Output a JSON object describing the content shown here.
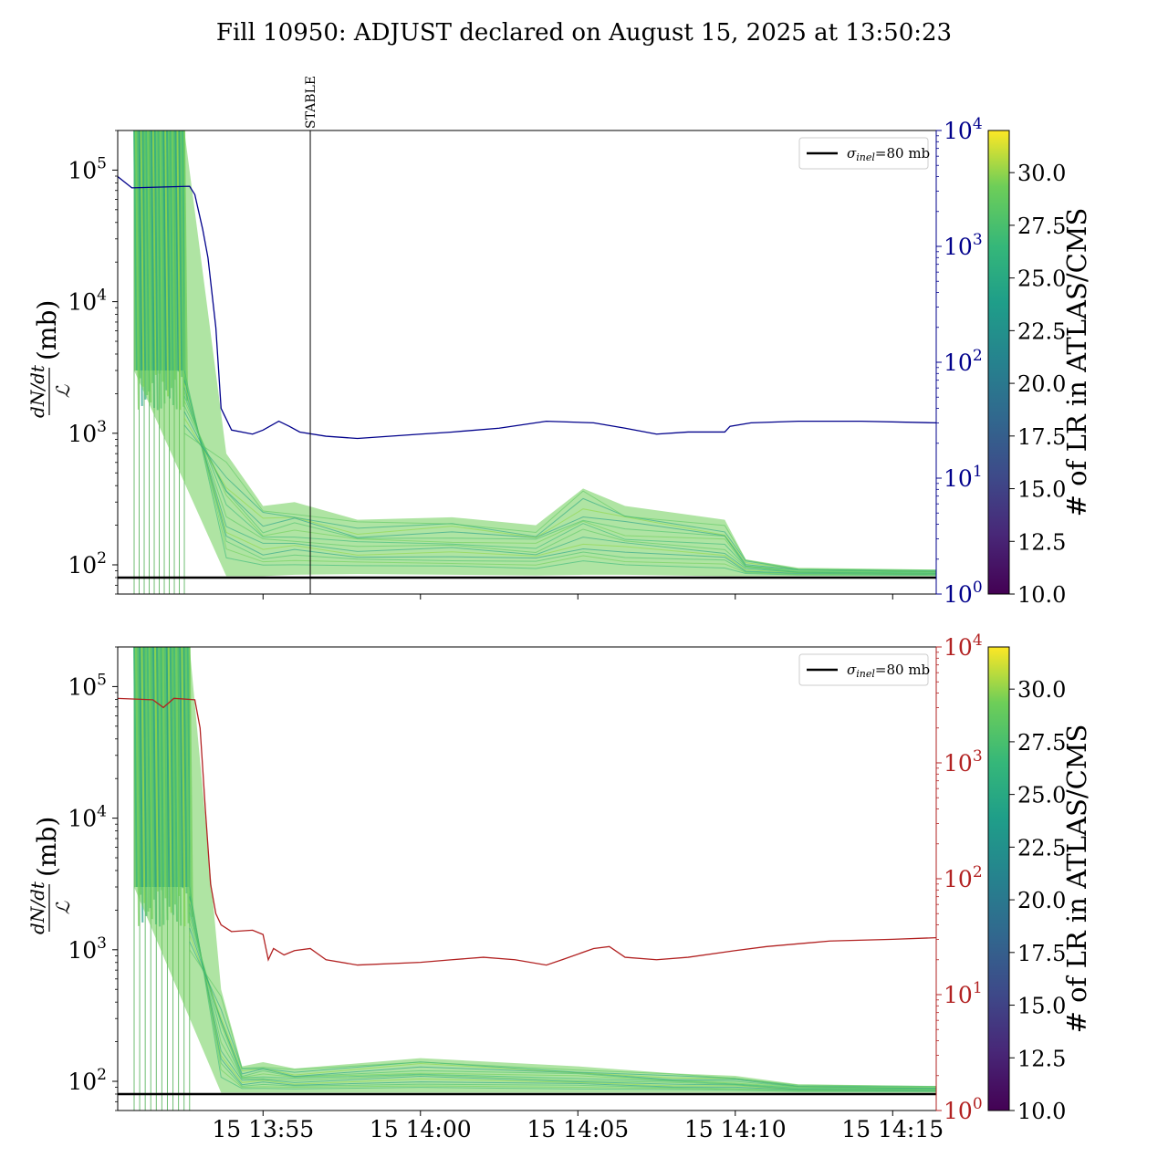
{
  "title": "Fill 10950: ADJUST declared on August 15, 2025 at 13:50:23",
  "colors": {
    "lumi_line": "#00008b",
    "rate_line": "#b22222",
    "reference_line": "#000000",
    "annotation_line": "#000000"
  },
  "chart_data": [
    {
      "type": "line",
      "panel": "top",
      "ylabel": {
        "numerator": "dN/dt",
        "denominator": "ℒ",
        "unit": "(mb)"
      },
      "yscale": "log",
      "ylim": [
        60,
        200000
      ],
      "y_ticks": [
        {
          "value": 100,
          "base": "10",
          "exp": "2"
        },
        {
          "value": 1000,
          "base": "10",
          "exp": "3"
        },
        {
          "value": 10000,
          "base": "10",
          "exp": "4"
        },
        {
          "value": 100000,
          "base": "10",
          "exp": "5"
        }
      ],
      "xlim": [
        "13:50:23",
        "14:16:23"
      ],
      "x_ticks": [],
      "y2scale": "log",
      "y2lim": [
        1,
        10000
      ],
      "y2_color": "#00008b",
      "y2_ticks": [
        {
          "value": 1,
          "base": "10",
          "exp": "0"
        },
        {
          "value": 10,
          "base": "10",
          "exp": "1"
        },
        {
          "value": 100,
          "base": "10",
          "exp": "2"
        },
        {
          "value": 1000,
          "base": "10",
          "exp": "3"
        },
        {
          "value": 10000,
          "base": "10",
          "exp": "4"
        }
      ],
      "reference_line": {
        "value": 80,
        "label_symbol": "σ",
        "label_sub": "inel",
        "label_rest": "=80 mb"
      },
      "legend": "top-right",
      "annotation": {
        "time": "13:56:30",
        "label": "STABLE"
      },
      "bundle": {
        "plateau_value": 100000,
        "plateau_end": "13:52:30",
        "drop_end": "13:53:50",
        "segments": [
          {
            "t": "13:53:50",
            "lo": 82,
            "hi": 700
          },
          {
            "t": "13:55:00",
            "lo": 82,
            "hi": 280
          },
          {
            "t": "13:56:00",
            "lo": 84,
            "hi": 300
          },
          {
            "t": "13:58:00",
            "lo": 85,
            "hi": 220
          },
          {
            "t": "14:01:00",
            "lo": 84,
            "hi": 230
          },
          {
            "t": "14:03:40",
            "lo": 83,
            "hi": 200
          },
          {
            "t": "14:05:10",
            "lo": 84,
            "hi": 380
          },
          {
            "t": "14:06:30",
            "lo": 84,
            "hi": 280
          },
          {
            "t": "14:09:40",
            "lo": 82,
            "hi": 220
          },
          {
            "t": "14:10:20",
            "lo": 82,
            "hi": 110
          },
          {
            "t": "14:12:00",
            "lo": 82,
            "hi": 95
          },
          {
            "t": "14:16:23",
            "lo": 82,
            "hi": 92
          }
        ]
      },
      "y2_series": {
        "color": "#00008b",
        "points": [
          [
            "13:50:23",
            4000
          ],
          [
            "13:50:50",
            3200
          ],
          [
            "13:52:40",
            3300
          ],
          [
            "13:52:50",
            2800
          ],
          [
            "13:53:05",
            1400
          ],
          [
            "13:53:15",
            800
          ],
          [
            "13:53:30",
            200
          ],
          [
            "13:53:40",
            40
          ],
          [
            "13:54:00",
            26
          ],
          [
            "13:54:40",
            24
          ],
          [
            "13:55:00",
            26
          ],
          [
            "13:55:30",
            31
          ],
          [
            "13:55:50",
            28
          ],
          [
            "13:56:10",
            25
          ],
          [
            "13:57:00",
            23
          ],
          [
            "13:58:00",
            22
          ],
          [
            "14:00:00",
            24
          ],
          [
            "14:01:00",
            25
          ],
          [
            "14:02:30",
            27
          ],
          [
            "14:04:00",
            31
          ],
          [
            "14:05:30",
            30
          ],
          [
            "14:06:30",
            27
          ],
          [
            "14:07:30",
            24
          ],
          [
            "14:08:30",
            25
          ],
          [
            "14:09:40",
            25
          ],
          [
            "14:09:50",
            28
          ],
          [
            "14:10:30",
            30
          ],
          [
            "14:12:00",
            31
          ],
          [
            "14:14:00",
            31
          ],
          [
            "14:16:23",
            30
          ]
        ]
      },
      "colorbar": {
        "label": "# of LR in ATLAS/CMS",
        "range": [
          10,
          32
        ],
        "ticks": [
          "10.0",
          "12.5",
          "15.0",
          "17.5",
          "20.0",
          "22.5",
          "25.0",
          "27.5",
          "30.0"
        ]
      }
    },
    {
      "type": "line",
      "panel": "bottom",
      "ylabel": {
        "numerator": "dN/dt",
        "denominator": "ℒ",
        "unit": "(mb)"
      },
      "yscale": "log",
      "ylim": [
        60,
        200000
      ],
      "y_ticks": [
        {
          "value": 100,
          "base": "10",
          "exp": "2"
        },
        {
          "value": 1000,
          "base": "10",
          "exp": "3"
        },
        {
          "value": 10000,
          "base": "10",
          "exp": "4"
        },
        {
          "value": 100000,
          "base": "10",
          "exp": "5"
        }
      ],
      "xlim": [
        "13:50:23",
        "14:16:23"
      ],
      "x_ticks": [
        {
          "time": "13:55:00",
          "label": "15 13:55"
        },
        {
          "time": "14:00:00",
          "label": "15 14:00"
        },
        {
          "time": "14:05:00",
          "label": "15 14:05"
        },
        {
          "time": "14:10:00",
          "label": "15 14:10"
        },
        {
          "time": "14:15:00",
          "label": "15 14:15"
        }
      ],
      "y2scale": "log",
      "y2lim": [
        1,
        10000
      ],
      "y2_color": "#b22222",
      "y2_ticks": [
        {
          "value": 1,
          "base": "10",
          "exp": "0"
        },
        {
          "value": 10,
          "base": "10",
          "exp": "1"
        },
        {
          "value": 100,
          "base": "10",
          "exp": "2"
        },
        {
          "value": 1000,
          "base": "10",
          "exp": "3"
        },
        {
          "value": 10000,
          "base": "10",
          "exp": "4"
        }
      ],
      "reference_line": {
        "value": 80,
        "label_symbol": "σ",
        "label_sub": "inel",
        "label_rest": "=80 mb"
      },
      "legend": "top-right",
      "bundle": {
        "plateau_value": 100000,
        "plateau_end": "13:52:40",
        "drop_end": "13:53:40",
        "segments": [
          {
            "t": "13:53:40",
            "lo": 82,
            "hi": 500
          },
          {
            "t": "13:54:20",
            "lo": 82,
            "hi": 130
          },
          {
            "t": "13:55:00",
            "lo": 82,
            "hi": 140
          },
          {
            "t": "13:56:00",
            "lo": 82,
            "hi": 125
          },
          {
            "t": "14:00:00",
            "lo": 82,
            "hi": 150
          },
          {
            "t": "14:05:00",
            "lo": 82,
            "hi": 130
          },
          {
            "t": "14:08:00",
            "lo": 82,
            "hi": 115
          },
          {
            "t": "14:10:00",
            "lo": 82,
            "hi": 110
          },
          {
            "t": "14:12:00",
            "lo": 82,
            "hi": 95
          },
          {
            "t": "14:16:23",
            "lo": 82,
            "hi": 92
          }
        ]
      },
      "y2_series": {
        "color": "#b22222",
        "points": [
          [
            "13:50:23",
            3600
          ],
          [
            "13:51:30",
            3500
          ],
          [
            "13:51:50",
            3000
          ],
          [
            "13:52:10",
            3600
          ],
          [
            "13:52:50",
            3500
          ],
          [
            "13:53:00",
            2000
          ],
          [
            "13:53:10",
            400
          ],
          [
            "13:53:20",
            90
          ],
          [
            "13:53:30",
            50
          ],
          [
            "13:53:40",
            40
          ],
          [
            "13:54:00",
            35
          ],
          [
            "13:54:40",
            36
          ],
          [
            "13:55:00",
            33
          ],
          [
            "13:55:10",
            20
          ],
          [
            "13:55:20",
            25
          ],
          [
            "13:55:40",
            22
          ],
          [
            "13:56:00",
            24
          ],
          [
            "13:56:30",
            25
          ],
          [
            "13:57:00",
            20
          ],
          [
            "13:58:00",
            18
          ],
          [
            "14:00:00",
            19
          ],
          [
            "14:01:00",
            20
          ],
          [
            "14:02:00",
            21
          ],
          [
            "14:03:00",
            20
          ],
          [
            "14:04:00",
            18
          ],
          [
            "14:04:30",
            20
          ],
          [
            "14:05:30",
            25
          ],
          [
            "14:06:00",
            26
          ],
          [
            "14:06:30",
            21
          ],
          [
            "14:07:30",
            20
          ],
          [
            "14:08:30",
            21
          ],
          [
            "14:10:00",
            24
          ],
          [
            "14:11:00",
            26
          ],
          [
            "14:13:00",
            29
          ],
          [
            "14:15:00",
            30
          ],
          [
            "14:16:23",
            31
          ]
        ]
      },
      "colorbar": {
        "label": "# of LR in ATLAS/CMS",
        "range": [
          10,
          32
        ],
        "ticks": [
          "10.0",
          "12.5",
          "15.0",
          "17.5",
          "20.0",
          "22.5",
          "25.0",
          "27.5",
          "30.0"
        ]
      }
    }
  ]
}
